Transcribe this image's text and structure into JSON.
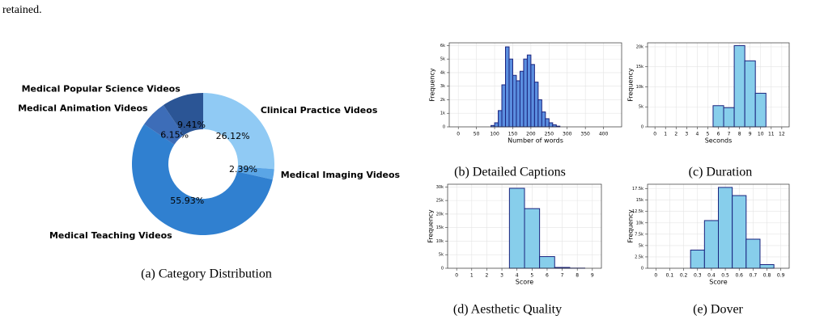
{
  "paper_text": "retained.",
  "chart_data": [
    {
      "type": "pie",
      "caption": "(a) Category Distribution",
      "categories": [
        "Clinical Practice Videos",
        "Medical Imaging Videos",
        "Medical Teaching Videos",
        "Medical Animation Videos",
        "Medical Popular Science Videos"
      ],
      "values": [
        26.12,
        2.39,
        55.93,
        6.15,
        9.41
      ],
      "value_labels": [
        "26.12%",
        "2.39%",
        "55.93%",
        "6.15%",
        "9.41%"
      ],
      "colors": [
        "#90caf4",
        "#5aa5e6",
        "#3080d0",
        "#3d6db8",
        "#2b5595"
      ]
    },
    {
      "type": "histogram",
      "caption": "(b) Detailed Captions",
      "xlabel": "Number of words",
      "ylabel": "Frequency",
      "color": "#5b8fe0",
      "edgecolor": "#1a237e",
      "bins": [
        90,
        100,
        110,
        120,
        130,
        140,
        150,
        160,
        170,
        180,
        190,
        200,
        210,
        220,
        230,
        240,
        250,
        260,
        270,
        280
      ],
      "values": [
        100,
        300,
        1200,
        3100,
        5900,
        5000,
        3800,
        3400,
        4100,
        5000,
        5300,
        4600,
        3300,
        2000,
        1100,
        600,
        300,
        150,
        50
      ],
      "xlim": [
        -25,
        450
      ],
      "xticks": [
        0,
        50,
        100,
        150,
        200,
        250,
        300,
        350,
        400
      ],
      "ylim": [
        0,
        6200
      ],
      "yticks": [
        0,
        {
          "value": 1000,
          "label": "1k"
        },
        {
          "value": 2000,
          "label": "2k"
        },
        {
          "value": 3000,
          "label": "3k"
        },
        {
          "value": 4000,
          "label": "4k"
        },
        {
          "value": 5000,
          "label": "5k"
        },
        {
          "value": 6000,
          "label": "6k"
        }
      ],
      "grid": true
    },
    {
      "type": "histogram",
      "caption": "(c) Duration",
      "xlabel": "Seconds",
      "ylabel": "Frequency",
      "color": "#87ceeb",
      "edgecolor": "#1a237e",
      "bins": [
        5.5,
        6.5,
        7.5,
        8.5,
        9.5,
        10.5
      ],
      "values": [
        5300,
        4800,
        20300,
        16500,
        8400
      ],
      "xlim": [
        -0.7,
        12.7
      ],
      "xticks": [
        0,
        1,
        2,
        3,
        4,
        5,
        6,
        7,
        8,
        9,
        10,
        11,
        12
      ],
      "ylim": [
        0,
        21000
      ],
      "yticks": [
        0,
        {
          "value": 5000,
          "label": "5k"
        },
        {
          "value": 10000,
          "label": "10k"
        },
        {
          "value": 15000,
          "label": "15k"
        },
        {
          "value": 20000,
          "label": "20k"
        }
      ],
      "grid": true
    },
    {
      "type": "histogram",
      "caption": "(d) Aesthetic Quality",
      "xlabel": "Score",
      "ylabel": "Frequency",
      "color": "#87ceeb",
      "edgecolor": "#1a237e",
      "bins": [
        3.5,
        4.5,
        5.5,
        6.5,
        7.5,
        8.5
      ],
      "values": [
        29500,
        22000,
        4300,
        300,
        50
      ],
      "xlim": [
        -0.6,
        9.6
      ],
      "xticks": [
        0,
        1,
        2,
        3,
        4,
        5,
        6,
        7,
        8,
        9
      ],
      "ylim": [
        0,
        31000
      ],
      "yticks": [
        0,
        {
          "value": 5000,
          "label": "5k"
        },
        {
          "value": 10000,
          "label": "10k"
        },
        {
          "value": 15000,
          "label": "15k"
        },
        {
          "value": 20000,
          "label": "20k"
        },
        {
          "value": 25000,
          "label": "25k"
        },
        {
          "value": 30000,
          "label": "30k"
        }
      ],
      "grid": true
    },
    {
      "type": "histogram",
      "caption": "(e) Dover",
      "xlabel": "Score",
      "ylabel": "Frequency",
      "color": "#87ceeb",
      "edgecolor": "#1a237e",
      "bins": [
        0.25,
        0.35,
        0.45,
        0.55,
        0.65,
        0.75,
        0.85
      ],
      "values": [
        4000,
        10500,
        17800,
        16000,
        6400,
        800
      ],
      "xlim": [
        -0.06,
        0.96
      ],
      "xticks": [
        0,
        0.1,
        0.2,
        0.3,
        0.4,
        0.5,
        0.6,
        0.7,
        0.8,
        0.9
      ],
      "ylim": [
        0,
        18500
      ],
      "yticks": [
        0,
        {
          "value": 2500,
          "label": "2.5k"
        },
        {
          "value": 5000,
          "label": "5k"
        },
        {
          "value": 7500,
          "label": "7.5k"
        },
        {
          "value": 10000,
          "label": "10k"
        },
        {
          "value": 12500,
          "label": "12.5k"
        },
        {
          "value": 15000,
          "label": "15k"
        },
        {
          "value": 17500,
          "label": "17.5k"
        }
      ],
      "grid": true
    }
  ]
}
